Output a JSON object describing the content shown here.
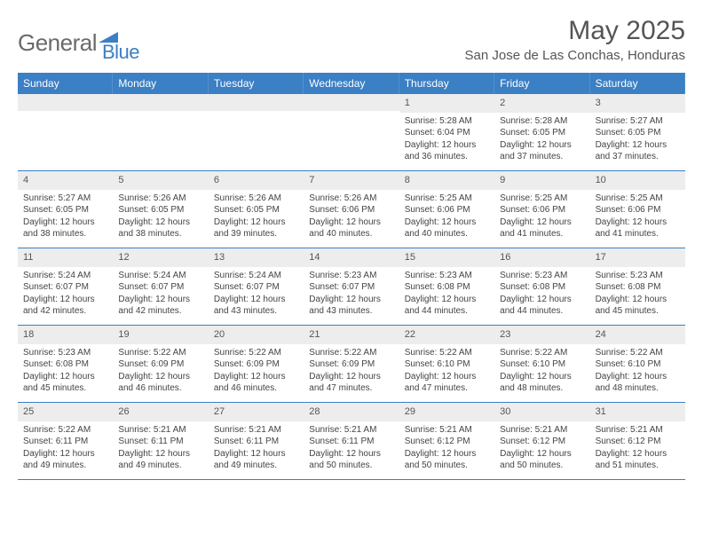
{
  "logo": {
    "text_gray": "General",
    "text_blue": "Blue"
  },
  "header": {
    "month_title": "May 2025",
    "location": "San Jose de Las Conchas, Honduras"
  },
  "colors": {
    "header_bar": "#3b7fc4",
    "daynum_bg": "#ededed",
    "border": "#3b7fc4"
  },
  "day_names": [
    "Sunday",
    "Monday",
    "Tuesday",
    "Wednesday",
    "Thursday",
    "Friday",
    "Saturday"
  ],
  "weeks": [
    [
      {
        "n": "",
        "sr": "",
        "ss": "",
        "dl": ""
      },
      {
        "n": "",
        "sr": "",
        "ss": "",
        "dl": ""
      },
      {
        "n": "",
        "sr": "",
        "ss": "",
        "dl": ""
      },
      {
        "n": "",
        "sr": "",
        "ss": "",
        "dl": ""
      },
      {
        "n": "1",
        "sr": "Sunrise: 5:28 AM",
        "ss": "Sunset: 6:04 PM",
        "dl": "Daylight: 12 hours and 36 minutes."
      },
      {
        "n": "2",
        "sr": "Sunrise: 5:28 AM",
        "ss": "Sunset: 6:05 PM",
        "dl": "Daylight: 12 hours and 37 minutes."
      },
      {
        "n": "3",
        "sr": "Sunrise: 5:27 AM",
        "ss": "Sunset: 6:05 PM",
        "dl": "Daylight: 12 hours and 37 minutes."
      }
    ],
    [
      {
        "n": "4",
        "sr": "Sunrise: 5:27 AM",
        "ss": "Sunset: 6:05 PM",
        "dl": "Daylight: 12 hours and 38 minutes."
      },
      {
        "n": "5",
        "sr": "Sunrise: 5:26 AM",
        "ss": "Sunset: 6:05 PM",
        "dl": "Daylight: 12 hours and 38 minutes."
      },
      {
        "n": "6",
        "sr": "Sunrise: 5:26 AM",
        "ss": "Sunset: 6:05 PM",
        "dl": "Daylight: 12 hours and 39 minutes."
      },
      {
        "n": "7",
        "sr": "Sunrise: 5:26 AM",
        "ss": "Sunset: 6:06 PM",
        "dl": "Daylight: 12 hours and 40 minutes."
      },
      {
        "n": "8",
        "sr": "Sunrise: 5:25 AM",
        "ss": "Sunset: 6:06 PM",
        "dl": "Daylight: 12 hours and 40 minutes."
      },
      {
        "n": "9",
        "sr": "Sunrise: 5:25 AM",
        "ss": "Sunset: 6:06 PM",
        "dl": "Daylight: 12 hours and 41 minutes."
      },
      {
        "n": "10",
        "sr": "Sunrise: 5:25 AM",
        "ss": "Sunset: 6:06 PM",
        "dl": "Daylight: 12 hours and 41 minutes."
      }
    ],
    [
      {
        "n": "11",
        "sr": "Sunrise: 5:24 AM",
        "ss": "Sunset: 6:07 PM",
        "dl": "Daylight: 12 hours and 42 minutes."
      },
      {
        "n": "12",
        "sr": "Sunrise: 5:24 AM",
        "ss": "Sunset: 6:07 PM",
        "dl": "Daylight: 12 hours and 42 minutes."
      },
      {
        "n": "13",
        "sr": "Sunrise: 5:24 AM",
        "ss": "Sunset: 6:07 PM",
        "dl": "Daylight: 12 hours and 43 minutes."
      },
      {
        "n": "14",
        "sr": "Sunrise: 5:23 AM",
        "ss": "Sunset: 6:07 PM",
        "dl": "Daylight: 12 hours and 43 minutes."
      },
      {
        "n": "15",
        "sr": "Sunrise: 5:23 AM",
        "ss": "Sunset: 6:08 PM",
        "dl": "Daylight: 12 hours and 44 minutes."
      },
      {
        "n": "16",
        "sr": "Sunrise: 5:23 AM",
        "ss": "Sunset: 6:08 PM",
        "dl": "Daylight: 12 hours and 44 minutes."
      },
      {
        "n": "17",
        "sr": "Sunrise: 5:23 AM",
        "ss": "Sunset: 6:08 PM",
        "dl": "Daylight: 12 hours and 45 minutes."
      }
    ],
    [
      {
        "n": "18",
        "sr": "Sunrise: 5:23 AM",
        "ss": "Sunset: 6:08 PM",
        "dl": "Daylight: 12 hours and 45 minutes."
      },
      {
        "n": "19",
        "sr": "Sunrise: 5:22 AM",
        "ss": "Sunset: 6:09 PM",
        "dl": "Daylight: 12 hours and 46 minutes."
      },
      {
        "n": "20",
        "sr": "Sunrise: 5:22 AM",
        "ss": "Sunset: 6:09 PM",
        "dl": "Daylight: 12 hours and 46 minutes."
      },
      {
        "n": "21",
        "sr": "Sunrise: 5:22 AM",
        "ss": "Sunset: 6:09 PM",
        "dl": "Daylight: 12 hours and 47 minutes."
      },
      {
        "n": "22",
        "sr": "Sunrise: 5:22 AM",
        "ss": "Sunset: 6:10 PM",
        "dl": "Daylight: 12 hours and 47 minutes."
      },
      {
        "n": "23",
        "sr": "Sunrise: 5:22 AM",
        "ss": "Sunset: 6:10 PM",
        "dl": "Daylight: 12 hours and 48 minutes."
      },
      {
        "n": "24",
        "sr": "Sunrise: 5:22 AM",
        "ss": "Sunset: 6:10 PM",
        "dl": "Daylight: 12 hours and 48 minutes."
      }
    ],
    [
      {
        "n": "25",
        "sr": "Sunrise: 5:22 AM",
        "ss": "Sunset: 6:11 PM",
        "dl": "Daylight: 12 hours and 49 minutes."
      },
      {
        "n": "26",
        "sr": "Sunrise: 5:21 AM",
        "ss": "Sunset: 6:11 PM",
        "dl": "Daylight: 12 hours and 49 minutes."
      },
      {
        "n": "27",
        "sr": "Sunrise: 5:21 AM",
        "ss": "Sunset: 6:11 PM",
        "dl": "Daylight: 12 hours and 49 minutes."
      },
      {
        "n": "28",
        "sr": "Sunrise: 5:21 AM",
        "ss": "Sunset: 6:11 PM",
        "dl": "Daylight: 12 hours and 50 minutes."
      },
      {
        "n": "29",
        "sr": "Sunrise: 5:21 AM",
        "ss": "Sunset: 6:12 PM",
        "dl": "Daylight: 12 hours and 50 minutes."
      },
      {
        "n": "30",
        "sr": "Sunrise: 5:21 AM",
        "ss": "Sunset: 6:12 PM",
        "dl": "Daylight: 12 hours and 50 minutes."
      },
      {
        "n": "31",
        "sr": "Sunrise: 5:21 AM",
        "ss": "Sunset: 6:12 PM",
        "dl": "Daylight: 12 hours and 51 minutes."
      }
    ]
  ]
}
